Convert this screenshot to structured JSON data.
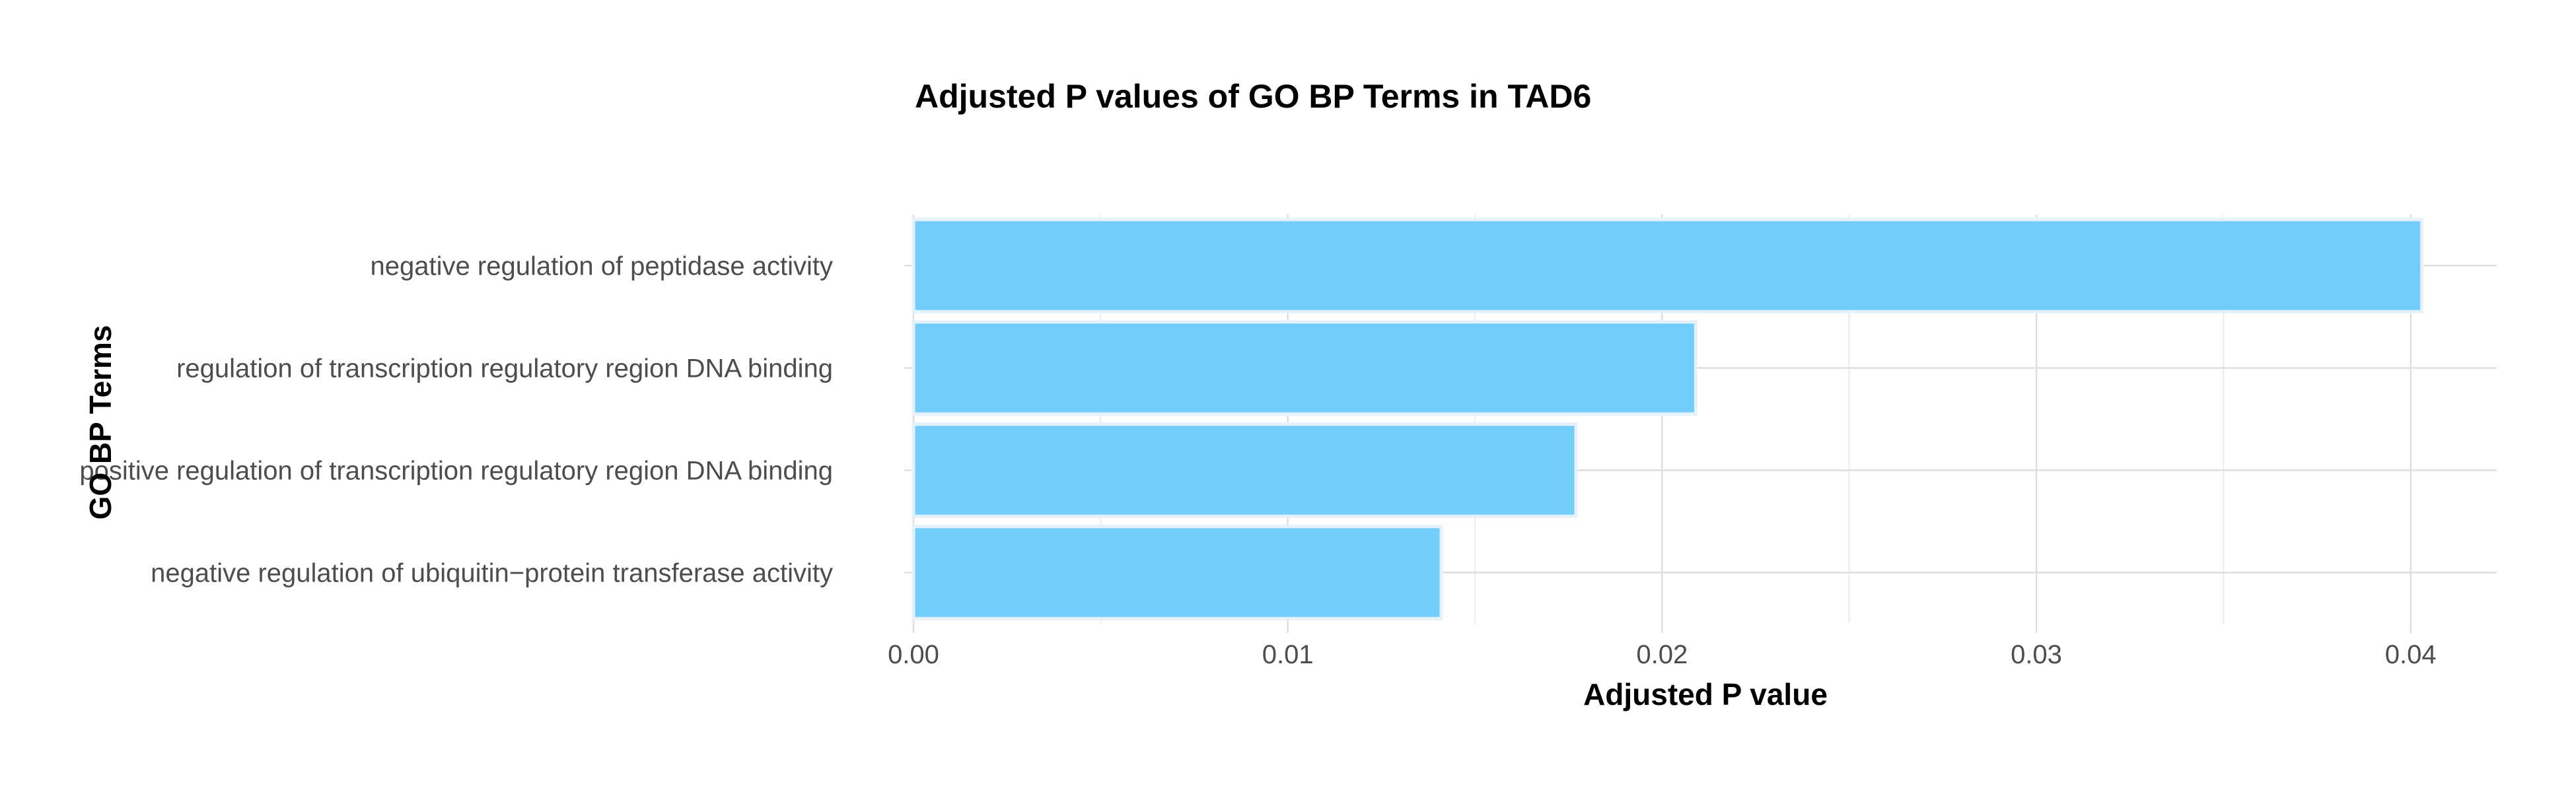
{
  "chart_data": {
    "type": "bar",
    "orientation": "horizontal",
    "title": "Adjusted P values of GO BP Terms in TAD6",
    "xlabel": "Adjusted P value",
    "ylabel": "GO BP Terms",
    "categories": [
      "negative regulation of peptidase activity",
      "regulation of transcription regulatory region DNA binding",
      "positive regulation of transcription regulatory region DNA binding",
      "negative regulation of ubiquitin−protein transferase activity"
    ],
    "values": [
      0.0403,
      0.0209,
      0.0177,
      0.0141
    ],
    "xlim": [
      0,
      0.0423
    ],
    "xticks": [
      0.0,
      0.01,
      0.02,
      0.03,
      0.04
    ],
    "xtick_labels": [
      "0.00",
      "0.01",
      "0.02",
      "0.03",
      "0.04"
    ],
    "bar_color": "#73cdfa",
    "grid": true,
    "legend": "none"
  }
}
